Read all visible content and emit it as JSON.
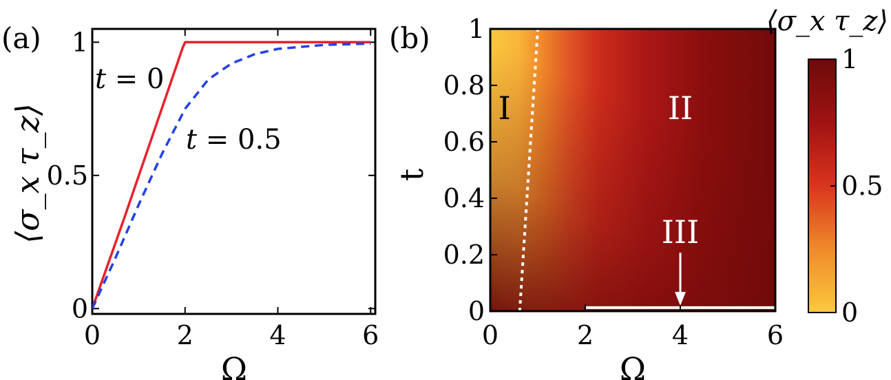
{
  "chart_data": [
    {
      "type": "line",
      "panel_label": "(a)",
      "xlabel": "Ω",
      "ylabel": "⟨σ_x τ_z⟩",
      "xlim": [
        0,
        6.1
      ],
      "ylim": [
        -0.02,
        1.05
      ],
      "xticks": [
        0,
        2,
        4,
        6
      ],
      "yticks": [
        0,
        0.5,
        1
      ],
      "ytick_labels": [
        "0",
        "0.5",
        "1"
      ],
      "grid": false,
      "series": [
        {
          "name": "t = 0",
          "color": "#e8202a",
          "dash": "solid",
          "x": [
            0,
            0.69,
            0.71,
            1.95,
            2.0,
            6.0
          ],
          "y": [
            0,
            0.34,
            0.35,
            0.98,
            1.0,
            1.0
          ]
        },
        {
          "name": "t = 0.5",
          "color": "#2240e8",
          "dash": "dashed",
          "x": [
            0,
            0.5,
            1.0,
            1.5,
            2.0,
            2.5,
            3.0,
            3.5,
            4.0,
            5.0,
            6.0
          ],
          "y": [
            0,
            0.19,
            0.39,
            0.58,
            0.75,
            0.86,
            0.92,
            0.955,
            0.975,
            0.99,
            0.995
          ]
        }
      ],
      "annotations": [
        {
          "text_italic": "t",
          "text": " = 0"
        },
        {
          "text_italic": "t",
          "text": " = 0.5"
        }
      ]
    },
    {
      "type": "heatmap",
      "panel_label": "(b)",
      "xlabel": "Ω",
      "ylabel": "t",
      "xlim": [
        0,
        6
      ],
      "ylim": [
        0,
        1
      ],
      "xticks": [
        0,
        2,
        4,
        6
      ],
      "yticks": [
        0,
        0.2,
        0.4,
        0.6,
        0.8,
        1
      ],
      "ytick_labels": [
        "0",
        "0.2",
        "0.4",
        "0.6",
        "0.8",
        "1"
      ],
      "colorbar": {
        "label": "⟨σ_x τ_z⟩",
        "range": [
          0,
          1
        ],
        "ticks": [
          0,
          0.5,
          1
        ],
        "tick_labels": [
          "0",
          "0.5",
          "1"
        ],
        "colors": [
          "#fbc93e",
          "#f08a2a",
          "#d9351d",
          "#a11212",
          "#6e0a0a"
        ]
      },
      "boundary_line": {
        "style": "white dotted",
        "x": [
          0.62,
          1.0
        ],
        "y": [
          0,
          1
        ]
      },
      "phase_III_line": {
        "style": "white solid",
        "x": [
          2.0,
          6.0
        ],
        "y": [
          0.01,
          0.01
        ]
      },
      "regions": [
        {
          "label": "I",
          "omega": 0.3,
          "t": 0.72
        },
        {
          "label": "II",
          "omega": 4.0,
          "t": 0.72
        },
        {
          "label": "III",
          "omega": 4.0,
          "t": 0.28
        }
      ]
    }
  ]
}
